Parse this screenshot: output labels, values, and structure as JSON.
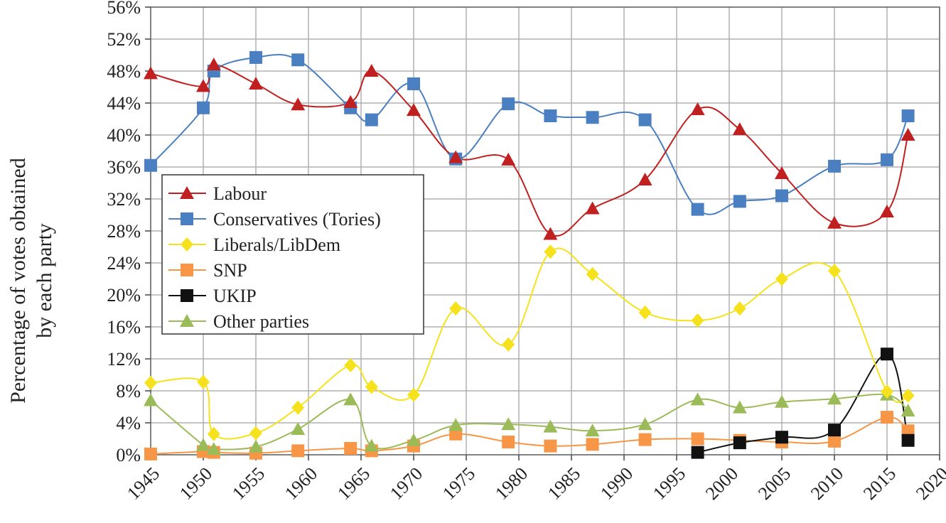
{
  "chart_data": {
    "type": "line",
    "title": "",
    "xlabel": "",
    "ylabel": "Percentage of votes obtained by each party",
    "ylabel_lines": [
      "Percentage of votes obtained",
      "by each party"
    ],
    "xlim": [
      1945,
      2020
    ],
    "ylim": [
      0,
      56
    ],
    "x_ticks": [
      1945,
      1950,
      1955,
      1960,
      1965,
      1970,
      1975,
      1980,
      1985,
      1990,
      1995,
      2000,
      2005,
      2010,
      2015,
      2020
    ],
    "x_tick_labels": [
      "1945",
      "1950",
      "1955",
      "1960",
      "1965",
      "1970",
      "1975",
      "1980",
      "1985",
      "1990",
      "1995",
      "2000",
      "2005",
      "2010",
      "2015",
      "2020"
    ],
    "y_ticks": [
      0,
      4,
      8,
      12,
      16,
      20,
      24,
      28,
      32,
      36,
      40,
      44,
      48,
      52,
      56
    ],
    "y_tick_labels": [
      "0%",
      "4%",
      "8%",
      "12%",
      "16%",
      "20%",
      "24%",
      "28%",
      "32%",
      "36%",
      "40%",
      "44%",
      "48%",
      "52%",
      "56%"
    ],
    "grid": true,
    "legend_position": "left-middle",
    "x": [
      1945,
      1950,
      1951,
      1955,
      1959,
      1964,
      1966,
      1970,
      1974,
      1979,
      1983,
      1987,
      1992,
      1997,
      2001,
      2005,
      2010,
      2015,
      2017
    ],
    "series": [
      {
        "name": "Labour",
        "color": "#c0201f",
        "marker": "triangle",
        "values": [
          47.7,
          46.1,
          48.8,
          46.4,
          43.8,
          44.1,
          48.0,
          43.1,
          37.2,
          36.9,
          27.6,
          30.8,
          34.4,
          43.2,
          40.7,
          35.2,
          29.0,
          30.4,
          40.0
        ]
      },
      {
        "name": "Conservatives (Tories)",
        "color": "#4a7fc1",
        "marker": "square",
        "values": [
          36.2,
          43.4,
          48.0,
          49.7,
          49.4,
          43.4,
          41.9,
          46.4,
          37.0,
          43.9,
          42.4,
          42.2,
          41.9,
          30.7,
          31.7,
          32.4,
          36.1,
          36.9,
          42.4
        ]
      },
      {
        "name": "Liberals/LibDem",
        "color": "#f5e21c",
        "marker": "diamond",
        "values": [
          9.0,
          9.1,
          2.6,
          2.7,
          5.9,
          11.2,
          8.5,
          7.5,
          18.3,
          13.8,
          25.4,
          22.6,
          17.8,
          16.8,
          18.3,
          22.0,
          23.0,
          7.9,
          7.4
        ]
      },
      {
        "name": "SNP",
        "color": "#f79646",
        "marker": "square",
        "values": [
          0.1,
          0.4,
          0.3,
          0.2,
          0.5,
          0.8,
          0.5,
          1.1,
          2.6,
          1.6,
          1.1,
          1.3,
          1.9,
          2.0,
          1.8,
          1.6,
          1.7,
          4.7,
          3.0
        ]
      },
      {
        "name": "UKIP",
        "color": "#111111",
        "marker": "square",
        "values": [
          null,
          null,
          null,
          null,
          null,
          null,
          null,
          null,
          null,
          null,
          null,
          null,
          null,
          0.3,
          1.5,
          2.2,
          3.1,
          12.6,
          1.8
        ]
      },
      {
        "name": "Other parties",
        "color": "#9bbb59",
        "marker": "triangle",
        "values": [
          6.8,
          1.2,
          0.7,
          1.0,
          3.2,
          6.9,
          1.1,
          1.8,
          3.7,
          3.8,
          3.5,
          3.0,
          3.8,
          6.9,
          5.9,
          6.6,
          7.0,
          7.5,
          5.5
        ]
      }
    ]
  }
}
